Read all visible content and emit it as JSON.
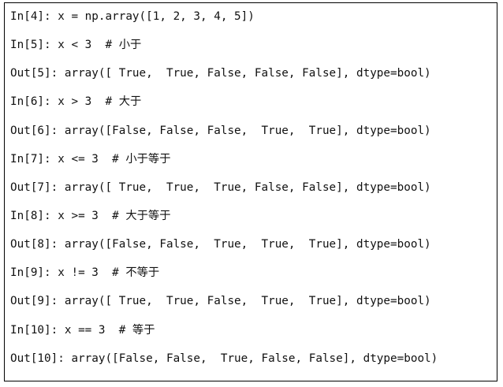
{
  "code_block": {
    "lines": [
      "In[4]: x = np.array([1, 2, 3, 4, 5])",
      "In[5]: x < 3  # 小于",
      "Out[5]: array([ True,  True, False, False, False], dtype=bool)",
      "In[6]: x > 3  # 大于",
      "Out[6]: array([False, False, False,  True,  True], dtype=bool)",
      "In[7]: x <= 3  # 小于等于",
      "Out[7]: array([ True,  True,  True, False, False], dtype=bool)",
      "In[8]: x >= 3  # 大于等于",
      "Out[8]: array([False, False,  True,  True,  True], dtype=bool)",
      "In[9]: x != 3  # 不等于",
      "Out[9]: array([ True,  True, False,  True,  True], dtype=bool)",
      "In[10]: x == 3  # 等于",
      "Out[10]: array([False, False,  True, False, False], dtype=bool)"
    ]
  }
}
